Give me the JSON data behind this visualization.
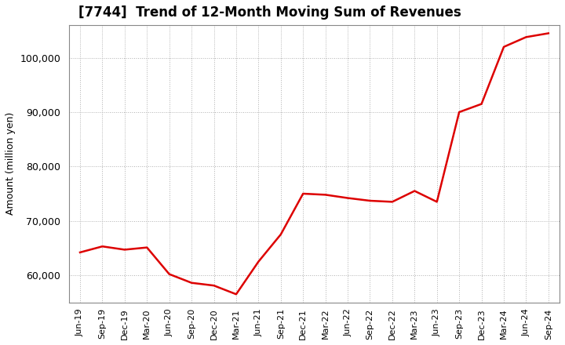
{
  "title": "[7744]  Trend of 12-Month Moving Sum of Revenues",
  "ylabel": "Amount (million yen)",
  "line_color": "#dd0000",
  "background_color": "#ffffff",
  "plot_bg_color": "#ffffff",
  "grid_color": "#b0b0b0",
  "ylim": [
    55000,
    106000
  ],
  "yticks": [
    60000,
    70000,
    80000,
    90000,
    100000
  ],
  "labels": [
    "Jun-19",
    "Sep-19",
    "Dec-19",
    "Mar-20",
    "Jun-20",
    "Sep-20",
    "Dec-20",
    "Mar-21",
    "Jun-21",
    "Sep-21",
    "Dec-21",
    "Mar-22",
    "Jun-22",
    "Sep-22",
    "Dec-22",
    "Mar-23",
    "Jun-23",
    "Sep-23",
    "Dec-23",
    "Mar-24",
    "Jun-24",
    "Sep-24"
  ],
  "values": [
    64200,
    65300,
    64700,
    65100,
    60200,
    58600,
    58100,
    56500,
    62500,
    67500,
    75000,
    74800,
    74200,
    73700,
    73500,
    75500,
    73500,
    90000,
    91500,
    102000,
    103800,
    104500
  ]
}
